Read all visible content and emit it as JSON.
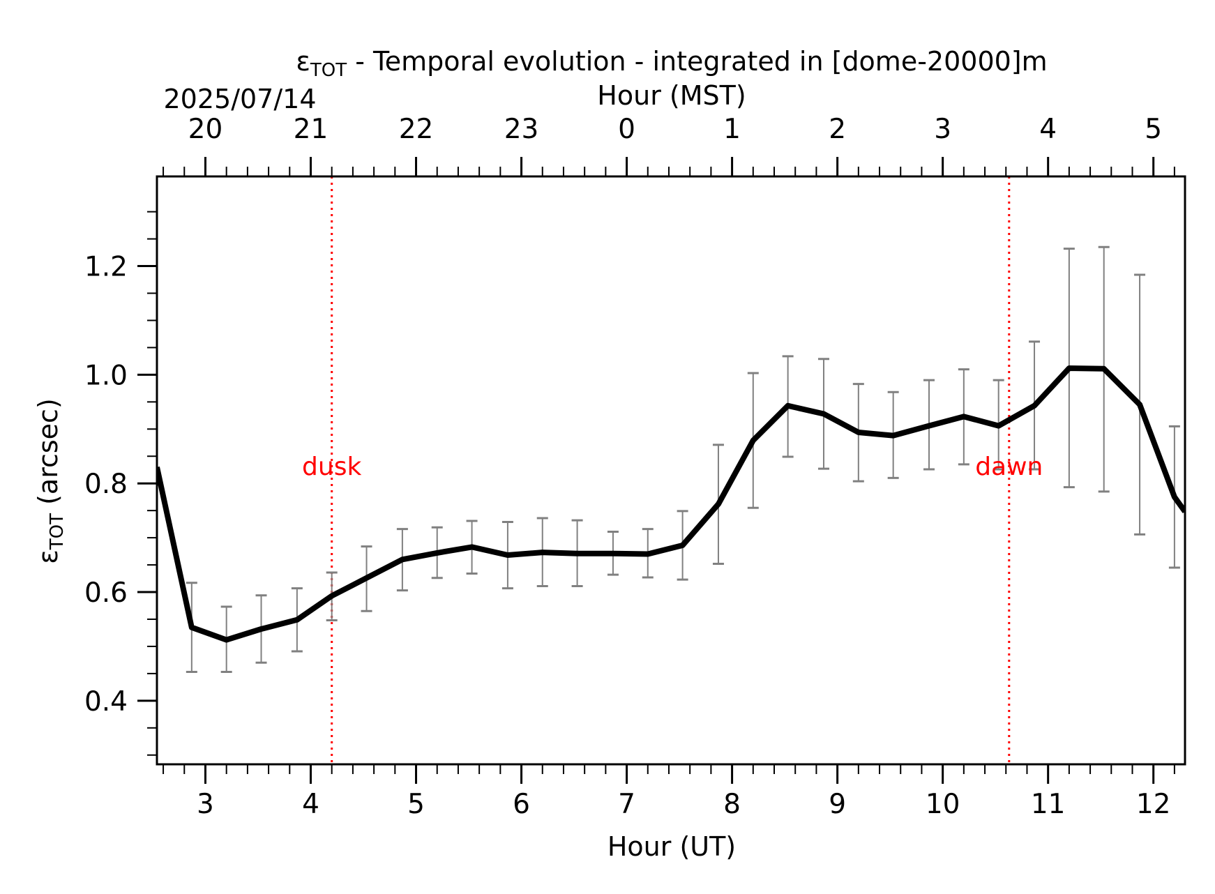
{
  "chart_data": {
    "type": "line",
    "title": {
      "prefix": "ε",
      "subscript": "TOT",
      "rest": " - Temporal evolution - integrated in [dome-20000]m"
    },
    "date_label": "2025/07/14",
    "xlabel_bottom": "Hour (UT)",
    "xlabel_top": "Hour (MST)",
    "ylabel": {
      "prefix": "ε",
      "subscript": "TOT",
      "rest": " (arcsec)"
    },
    "xlim": [
      2.54,
      12.3
    ],
    "ylim": [
      0.283,
      1.365
    ],
    "x_ticks_bottom": [
      3,
      4,
      5,
      6,
      7,
      8,
      9,
      10,
      11,
      12
    ],
    "x_ticks_top": [
      {
        "x": 3,
        "label": "20"
      },
      {
        "x": 4,
        "label": "21"
      },
      {
        "x": 5,
        "label": "22"
      },
      {
        "x": 6,
        "label": "23"
      },
      {
        "x": 7,
        "label": "0"
      },
      {
        "x": 8,
        "label": "1"
      },
      {
        "x": 9,
        "label": "2"
      },
      {
        "x": 10,
        "label": "3"
      },
      {
        "x": 11,
        "label": "4"
      },
      {
        "x": 12,
        "label": "5"
      }
    ],
    "y_ticks": [
      "0.4",
      "0.6",
      "0.8",
      "1.0",
      "1.2"
    ],
    "grid": false,
    "series": [
      {
        "x": [
          2.54,
          2.87,
          3.2,
          3.53,
          3.87,
          4.2,
          4.53,
          4.87,
          5.2,
          5.53,
          5.87,
          6.2,
          6.53,
          6.87,
          7.2,
          7.53,
          7.87,
          8.2,
          8.53,
          8.87,
          9.2,
          9.53,
          9.87,
          10.2,
          10.53,
          10.87,
          11.2,
          11.53,
          11.87,
          12.2,
          12.3
        ],
        "y": [
          0.83,
          0.535,
          0.512,
          0.532,
          0.549,
          0.593,
          0.626,
          0.66,
          0.672,
          0.683,
          0.668,
          0.673,
          0.671,
          0.671,
          0.67,
          0.686,
          0.762,
          0.879,
          0.943,
          0.928,
          0.894,
          0.888,
          0.906,
          0.923,
          0.906,
          0.943,
          1.012,
          1.011,
          0.945,
          0.775,
          0.748
        ],
        "err_low": [
          null,
          0.453,
          0.453,
          0.47,
          0.491,
          0.548,
          0.565,
          0.603,
          0.626,
          0.634,
          0.607,
          0.611,
          0.611,
          0.632,
          0.627,
          0.623,
          0.652,
          0.755,
          0.849,
          0.827,
          0.804,
          0.81,
          0.826,
          0.835,
          0.826,
          0.826,
          0.793,
          0.785,
          0.706,
          0.645,
          null
        ],
        "err_high": [
          null,
          0.617,
          0.573,
          0.594,
          0.607,
          0.636,
          0.684,
          0.716,
          0.719,
          0.731,
          0.729,
          0.736,
          0.732,
          0.711,
          0.716,
          0.749,
          0.871,
          1.003,
          1.034,
          1.029,
          0.983,
          0.968,
          0.99,
          1.01,
          0.99,
          1.061,
          1.232,
          1.235,
          1.184,
          0.905,
          null
        ]
      }
    ],
    "annotations": [
      {
        "text": "dusk",
        "x": 4.2
      },
      {
        "text": "dawn",
        "x": 10.63
      }
    ],
    "colors": {
      "line": "#000000",
      "errorbar": "#808080",
      "marker_lines": "#ff0000",
      "annotation": "#ff0000"
    }
  }
}
